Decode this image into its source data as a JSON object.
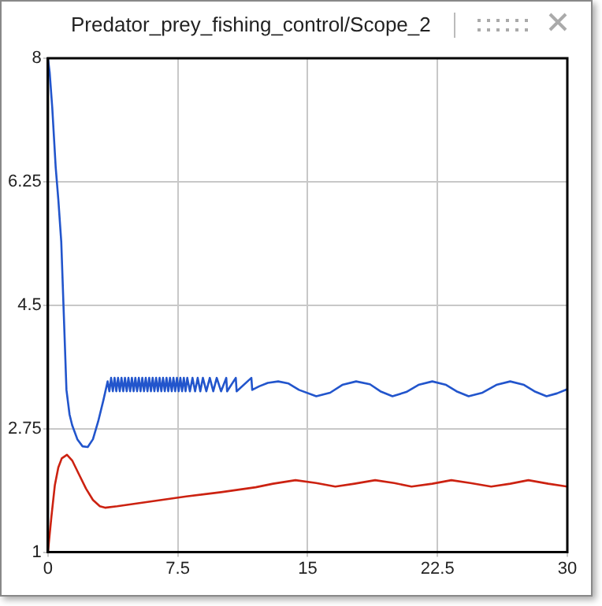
{
  "chart_data": {
    "type": "line",
    "title": "Predator_prey_fishing_control/Scope_2",
    "xlim": [
      0,
      30
    ],
    "xticks": [
      0,
      7.5,
      15,
      22.5,
      30
    ],
    "ylim": [
      1,
      8
    ],
    "yticks": [
      1,
      2.75,
      4.5,
      6.25,
      8
    ],
    "grid": true,
    "legend": false,
    "marker": "none",
    "line_style": "solid",
    "series": [
      {
        "color": "#2255cc",
        "x": [
          0,
          0.1,
          0.25,
          0.45,
          0.6,
          0.77,
          0.92,
          1.07,
          1.25,
          1.4,
          1.7,
          2.0,
          2.3,
          2.6,
          2.9,
          3.2,
          3.45,
          3.55,
          3.65,
          3.75,
          3.85,
          3.95,
          4.05,
          4.15,
          4.25,
          4.35,
          4.45,
          4.55,
          4.65,
          4.75,
          4.85,
          4.95,
          5.05,
          5.15,
          5.25,
          5.35,
          5.45,
          5.55,
          5.65,
          5.75,
          5.85,
          5.95,
          6.05,
          6.15,
          6.25,
          6.35,
          6.45,
          6.55,
          6.65,
          6.75,
          6.85,
          6.95,
          7.05,
          7.15,
          7.25,
          7.35,
          7.45,
          7.55,
          7.65,
          7.75,
          7.85,
          7.95,
          8.05,
          8.2,
          8.35,
          8.5,
          8.65,
          8.8,
          8.95,
          9.15,
          9.35,
          9.55,
          9.75,
          10.0,
          10.3,
          10.35,
          10.85,
          10.9,
          11.75,
          11.8,
          12.2,
          12.7,
          13.3,
          13.9,
          14.5,
          15.5,
          16.3,
          17.0,
          17.8,
          18.6,
          19.2,
          19.9,
          20.7,
          21.4,
          22.2,
          23.0,
          23.6,
          24.3,
          25.1,
          25.9,
          26.7,
          27.5,
          28.1,
          28.8,
          29.4,
          30
        ],
        "values": [
          8,
          7.8,
          7.3,
          6.45,
          6.0,
          5.4,
          4.35,
          3.3,
          2.95,
          2.8,
          2.6,
          2.5,
          2.49,
          2.6,
          2.85,
          3.15,
          3.42,
          3.28,
          3.47,
          3.28,
          3.47,
          3.28,
          3.47,
          3.28,
          3.47,
          3.28,
          3.47,
          3.28,
          3.47,
          3.28,
          3.47,
          3.28,
          3.47,
          3.28,
          3.47,
          3.28,
          3.47,
          3.28,
          3.47,
          3.28,
          3.47,
          3.28,
          3.47,
          3.28,
          3.47,
          3.28,
          3.47,
          3.28,
          3.47,
          3.28,
          3.47,
          3.28,
          3.47,
          3.28,
          3.47,
          3.28,
          3.47,
          3.28,
          3.47,
          3.28,
          3.47,
          3.28,
          3.47,
          3.28,
          3.47,
          3.28,
          3.47,
          3.28,
          3.47,
          3.28,
          3.47,
          3.28,
          3.47,
          3.28,
          3.47,
          3.28,
          3.47,
          3.28,
          3.47,
          3.3,
          3.35,
          3.4,
          3.42,
          3.39,
          3.3,
          3.21,
          3.26,
          3.37,
          3.42,
          3.38,
          3.28,
          3.21,
          3.27,
          3.37,
          3.42,
          3.37,
          3.28,
          3.21,
          3.26,
          3.37,
          3.42,
          3.37,
          3.28,
          3.21,
          3.25,
          3.31
        ]
      },
      {
        "color": "#cc2211",
        "x": [
          0,
          0.2,
          0.4,
          0.6,
          0.8,
          1.1,
          1.4,
          1.8,
          2.2,
          2.6,
          3.0,
          3.3,
          4,
          6,
          8,
          10,
          12,
          13,
          14.3,
          15.5,
          16.6,
          17.7,
          18.9,
          20,
          21.0,
          22.2,
          23.3,
          24.4,
          25.6,
          26.7,
          27.75,
          28.9,
          30
        ],
        "values": [
          1,
          1.5,
          1.95,
          2.2,
          2.33,
          2.38,
          2.3,
          2.1,
          1.9,
          1.74,
          1.65,
          1.63,
          1.65,
          1.72,
          1.79,
          1.85,
          1.92,
          1.97,
          2.02,
          1.98,
          1.93,
          1.97,
          2.02,
          1.98,
          1.93,
          1.97,
          2.02,
          1.98,
          1.93,
          1.97,
          2.02,
          1.97,
          1.93
        ]
      }
    ]
  }
}
